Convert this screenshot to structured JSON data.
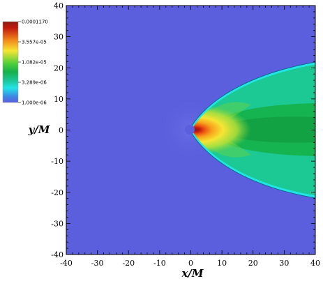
{
  "chart_data": {
    "type": "heatmap",
    "title": "",
    "xlabel": "x/M",
    "ylabel": "y/M",
    "xlim": [
      -40,
      40
    ],
    "ylim": [
      -40,
      40
    ],
    "xticks": [
      "-40",
      "-30",
      "-20",
      "-10",
      "0",
      "10",
      "20",
      "30",
      "40"
    ],
    "yticks": [
      "40",
      "30",
      "20",
      "10",
      "0",
      "-10",
      "-20",
      "-30",
      "-40"
    ],
    "scale": "log",
    "colorbar": {
      "min": "1.000e-06",
      "max": "0.0001170",
      "labels": [
        "0.0001170",
        "3.557e-05",
        "1.082e-05",
        "3.289e-06",
        "1.000e-06"
      ],
      "placement": "top-left"
    },
    "features": {
      "shock_cone_apex": [
        0,
        0
      ],
      "shock_cone_edge_at_x40": [
        22,
        -21
      ],
      "central_object_radius": 1.2
    },
    "colors": {
      "background": "#5c5fdd",
      "low": "#5c5fdd",
      "cyan": "#22e5e5",
      "green": "#16b04a",
      "mint": "#1cc893",
      "yellow": "#f6e533",
      "orange": "#f7a21c",
      "red": "#c2190e",
      "darkred": "#8b1a12"
    }
  }
}
